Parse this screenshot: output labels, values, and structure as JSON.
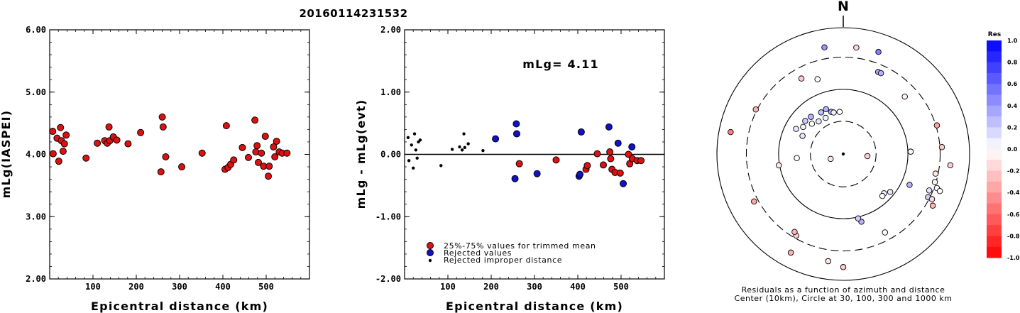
{
  "title": "20160114231532",
  "chart_data": [
    {
      "type": "scatter",
      "xlabel": "Epicentral distance (km)",
      "ylabel": "mLg(IASPEI)",
      "xlim": [
        0,
        600
      ],
      "ylim": [
        2.0,
        6.0
      ],
      "xticks": [
        "100",
        "200",
        "300",
        "400",
        "500"
      ],
      "yticks": [
        "2.00",
        "3.00",
        "4.00",
        "5.00",
        "6.00"
      ],
      "grid": false,
      "series": [
        {
          "color": "#dd1111",
          "x": [
            7,
            8,
            17,
            21,
            25,
            27,
            31,
            34,
            38,
            84,
            110,
            127,
            133,
            137,
            139,
            147,
            155,
            181,
            210,
            257,
            260,
            262,
            268,
            305,
            352,
            405,
            408,
            412,
            418,
            425,
            445,
            459,
            474,
            476,
            479,
            482,
            489,
            494,
            498,
            505,
            507,
            517,
            520,
            524,
            530,
            537,
            548
          ],
          "y": [
            4.37,
            4.01,
            4.26,
            3.89,
            4.43,
            4.22,
            4.05,
            4.17,
            4.31,
            3.94,
            4.18,
            4.22,
            4.18,
            4.44,
            4.22,
            4.28,
            4.23,
            4.17,
            4.35,
            3.72,
            4.6,
            4.44,
            3.96,
            3.8,
            4.02,
            3.76,
            4.46,
            3.79,
            3.84,
            3.91,
            4.11,
            3.95,
            4.55,
            4.04,
            4.14,
            3.87,
            4.02,
            3.81,
            4.29,
            3.65,
            3.81,
            4.12,
            3.96,
            4.21,
            4.04,
            4.02,
            4.02
          ]
        }
      ]
    },
    {
      "type": "scatter",
      "xlabel": "Epicentral distance (km)",
      "ylabel": "mLg - mLg(evt)",
      "xlim": [
        0,
        600
      ],
      "ylim": [
        -2.0,
        2.0
      ],
      "xticks": [
        "100",
        "200",
        "300",
        "400",
        "500"
      ],
      "yticks": [
        "-2.00",
        "-1.00",
        "0.00",
        "1.00",
        "2.00"
      ],
      "annotation": "mLg= 4.11",
      "reference_line": 0.0,
      "legend": {
        "placement": "bottom-left",
        "entries": [
          "25%-75% values for trimmed mean",
          "Rejected values",
          "Rejected improper distance"
        ]
      },
      "series": [
        {
          "name": "25%-75% values for trimmed mean",
          "color": "#dd1111",
          "x": [
            265,
            350,
            419,
            422,
            445,
            459,
            474,
            476,
            479,
            486,
            498,
            517,
            520,
            526,
            537,
            546
          ],
          "y": [
            -0.15,
            -0.09,
            -0.24,
            -0.18,
            0.01,
            -0.17,
            0.04,
            -0.07,
            -0.24,
            -0.29,
            -0.3,
            0.0,
            -0.15,
            -0.07,
            -0.1,
            -0.1
          ]
        },
        {
          "name": "Rejected values",
          "color": "#1111cc",
          "x": [
            210,
            255,
            258,
            259,
            306,
            403,
            405,
            408,
            472,
            493,
            505,
            525
          ],
          "y": [
            0.25,
            -0.39,
            0.49,
            0.33,
            -0.31,
            -0.35,
            -0.32,
            0.36,
            0.44,
            0.18,
            -0.47,
            0.12
          ]
        },
        {
          "name": "Rejected improper distance",
          "color": "#000000",
          "x": [
            8,
            10,
            16,
            20,
            23,
            26,
            29,
            32,
            36,
            84,
            110,
            127,
            133,
            137,
            139,
            147,
            181
          ],
          "y": [
            0.27,
            -0.1,
            0.15,
            -0.22,
            0.33,
            0.07,
            -0.06,
            0.2,
            0.23,
            -0.18,
            0.08,
            0.12,
            0.07,
            0.33,
            0.11,
            0.17,
            0.06
          ]
        }
      ]
    },
    {
      "type": "scatter",
      "subtype": "polar",
      "north_label": "N",
      "caption": [
        "Residuals as a function of azimuth and distance",
        "Center (10km), Circle at 30, 100, 300 and 1000 km"
      ],
      "rings_km": [
        30,
        100,
        300,
        1000
      ],
      "colorbar": {
        "title": "Res",
        "ticks": [
          "1.0",
          "0.8",
          "0.6",
          "0.4",
          "0.2",
          "0.0",
          "-0.2",
          "-0.4",
          "-0.6",
          "-0.8",
          "-1.0"
        ],
        "positive_color": "#0000ff",
        "negative_color": "#ff0000",
        "zero_color": "#ffffff"
      },
      "points": [
        {
          "azimuth_deg": 350,
          "norm_radius": 0.857,
          "residual": 0.4
        },
        {
          "azimuth_deg": 7,
          "norm_radius": 0.849,
          "residual": -0.15
        },
        {
          "azimuth_deg": 19,
          "norm_radius": 0.855,
          "residual": 0.5
        },
        {
          "azimuth_deg": 23,
          "norm_radius": 0.706,
          "residual": 0.35
        },
        {
          "azimuth_deg": 25,
          "norm_radius": 0.706,
          "residual": 0.3
        },
        {
          "azimuth_deg": 331,
          "norm_radius": 0.683,
          "residual": -0.2
        },
        {
          "azimuth_deg": 341,
          "norm_radius": 0.626,
          "residual": 0.0
        },
        {
          "azimuth_deg": 47,
          "norm_radius": 0.666,
          "residual": -0.05
        },
        {
          "azimuth_deg": 297,
          "norm_radius": 0.777,
          "residual": -0.3
        },
        {
          "azimuth_deg": 73,
          "norm_radius": 0.775,
          "residual": -0.35
        },
        {
          "azimuth_deg": 86,
          "norm_radius": 0.783,
          "residual": -0.2
        },
        {
          "azimuth_deg": 96,
          "norm_radius": 0.852,
          "residual": -0.2
        },
        {
          "azimuth_deg": 102,
          "norm_radius": 0.747,
          "residual": -0.1
        },
        {
          "azimuth_deg": 107,
          "norm_radius": 0.758,
          "residual": -0.05
        },
        {
          "azimuth_deg": 113,
          "norm_radius": 0.739,
          "residual": 0.1
        },
        {
          "azimuth_deg": 110,
          "norm_radius": 0.789,
          "residual": 0.0
        },
        {
          "azimuth_deg": 111,
          "norm_radius": 0.819,
          "residual": 0.0
        },
        {
          "azimuth_deg": 117,
          "norm_radius": 0.753,
          "residual": 0.2
        },
        {
          "azimuth_deg": 117,
          "norm_radius": 0.788,
          "residual": -0.15
        },
        {
          "azimuth_deg": 120,
          "norm_radius": 0.818,
          "residual": -0.3
        },
        {
          "azimuth_deg": 88,
          "norm_radius": 0.534,
          "residual": 0.0
        },
        {
          "azimuth_deg": 115,
          "norm_radius": 0.579,
          "residual": 0.3
        },
        {
          "azimuth_deg": 129,
          "norm_radius": 0.478,
          "residual": 0.1
        },
        {
          "azimuth_deg": 134,
          "norm_radius": 0.448,
          "residual": 0.05
        },
        {
          "azimuth_deg": 137,
          "norm_radius": 0.454,
          "residual": 0.0
        },
        {
          "azimuth_deg": 152,
          "norm_radius": 0.703,
          "residual": 0.0
        },
        {
          "azimuth_deg": 165,
          "norm_radius": 0.555,
          "residual": 0.3
        },
        {
          "azimuth_deg": 167,
          "norm_radius": 0.523,
          "residual": 0.2
        },
        {
          "azimuth_deg": 180,
          "norm_radius": 0.895,
          "residual": -0.2
        },
        {
          "azimuth_deg": 188,
          "norm_radius": 0.857,
          "residual": -0.1
        },
        {
          "azimuth_deg": 208,
          "norm_radius": 0.884,
          "residual": -0.3
        },
        {
          "azimuth_deg": 210,
          "norm_radius": 0.745,
          "residual": -0.2
        },
        {
          "azimuth_deg": 212,
          "norm_radius": 0.727,
          "residual": -0.3
        },
        {
          "azimuth_deg": 242,
          "norm_radius": 0.8,
          "residual": -0.35
        },
        {
          "azimuth_deg": 260,
          "norm_radius": 0.518,
          "residual": -0.1
        },
        {
          "azimuth_deg": 265,
          "norm_radius": 0.369,
          "residual": 0.0
        },
        {
          "azimuth_deg": 281,
          "norm_radius": 0.908,
          "residual": -0.5
        },
        {
          "azimuth_deg": 294,
          "norm_radius": 0.353,
          "residual": 0.1
        },
        {
          "azimuth_deg": 298,
          "norm_radius": 0.423,
          "residual": 0.1
        },
        {
          "azimuth_deg": 304,
          "norm_radius": 0.383,
          "residual": 0.05
        },
        {
          "azimuth_deg": 311,
          "norm_radius": 0.399,
          "residual": 0.2
        },
        {
          "azimuth_deg": 314,
          "norm_radius": 0.345,
          "residual": 0.0
        },
        {
          "azimuth_deg": 319,
          "norm_radius": 0.39,
          "residual": 0.3
        },
        {
          "azimuth_deg": 323,
          "norm_radius": 0.323,
          "residual": 0.1
        },
        {
          "azimuth_deg": 332,
          "norm_radius": 0.373,
          "residual": 0.25
        },
        {
          "azimuth_deg": 334,
          "norm_radius": 0.318,
          "residual": 0.05
        },
        {
          "azimuth_deg": 339,
          "norm_radius": 0.38,
          "residual": 0.3
        },
        {
          "azimuth_deg": 344,
          "norm_radius": 0.347,
          "residual": 0.3
        },
        {
          "azimuth_deg": 347,
          "norm_radius": 0.337,
          "residual": 0.05
        },
        {
          "azimuth_deg": 355,
          "norm_radius": 0.335,
          "residual": 0.0
        },
        {
          "azimuth_deg": 95,
          "norm_radius": 0.192,
          "residual": -0.2
        },
        {
          "azimuth_deg": 249,
          "norm_radius": 0.107,
          "residual": -0.1
        },
        {
          "azimuth_deg": 0,
          "norm_radius": 0.0,
          "residual": null,
          "marker": "center"
        }
      ]
    }
  ]
}
